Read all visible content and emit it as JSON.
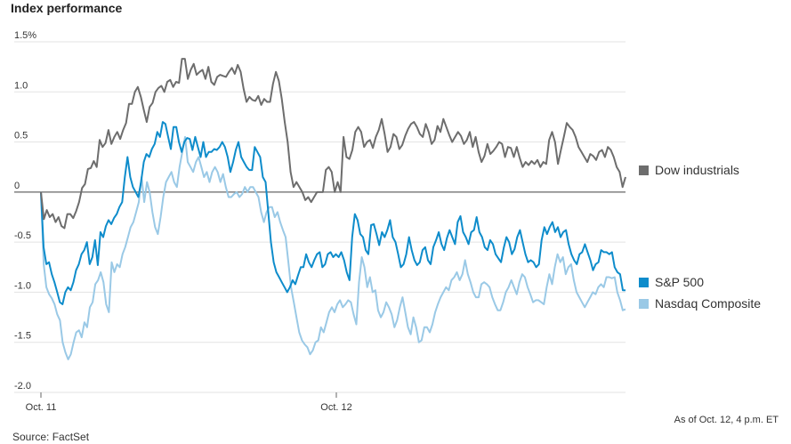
{
  "chart_data": {
    "type": "line",
    "title": "Index performance",
    "source": "Source: FactSet",
    "note": "As of Oct. 12, 4 p.m. ET",
    "x_ticks": [
      "Oct. 11",
      "Oct. 12"
    ],
    "ylim": [
      -2.0,
      1.5
    ],
    "y_ticks": [
      {
        "value": 1.5,
        "label": "1.5%"
      },
      {
        "value": 1.0,
        "label": "1.0"
      },
      {
        "value": 0.5,
        "label": "0.5"
      },
      {
        "value": 0,
        "label": "0"
      },
      {
        "value": -0.5,
        "label": "-0.5"
      },
      {
        "value": -1.0,
        "label": "-1.0"
      },
      {
        "value": -1.5,
        "label": "-1.5"
      },
      {
        "value": -2.0,
        "label": "-2.0"
      }
    ],
    "grid": true,
    "legend": "right",
    "sessions": [
      {
        "label": "Oct. 11",
        "start": 0,
        "end": 100
      },
      {
        "label": "Oct. 12",
        "start": 100,
        "end": 200
      }
    ],
    "series": [
      {
        "name": "Dow industrials",
        "color": "#6d6d6d",
        "values": [
          0.0,
          -0.27,
          -0.18,
          -0.25,
          -0.22,
          -0.3,
          -0.25,
          -0.34,
          -0.36,
          -0.22,
          -0.22,
          -0.26,
          -0.19,
          -0.1,
          0.04,
          0.08,
          0.23,
          0.24,
          0.31,
          0.25,
          0.52,
          0.45,
          0.49,
          0.62,
          0.48,
          0.55,
          0.6,
          0.53,
          0.62,
          0.69,
          0.88,
          0.88,
          1.0,
          1.05,
          0.95,
          0.82,
          0.7,
          0.85,
          0.89,
          1.0,
          1.04,
          1.06,
          1.0,
          1.1,
          1.12,
          1.05,
          1.1,
          1.09,
          1.33,
          1.33,
          1.13,
          1.22,
          1.28,
          1.17,
          1.2,
          1.22,
          1.13,
          1.25,
          1.1,
          1.07,
          1.15,
          1.17,
          1.16,
          1.15,
          1.2,
          1.24,
          1.18,
          1.27,
          1.2,
          1.03,
          0.9,
          0.95,
          0.92,
          0.91,
          0.96,
          0.87,
          0.93,
          0.9,
          0.9,
          1.08,
          1.2,
          1.11,
          0.93,
          0.7,
          0.5,
          0.2,
          0.05,
          0.1,
          0.05,
          0.0,
          -0.08,
          -0.05,
          -0.1,
          -0.05,
          0.0,
          0.0,
          0.0,
          0.22,
          0.25,
          0.2,
          0.0,
          0.1,
          0.0,
          0.55,
          0.35,
          0.33,
          0.42,
          0.6,
          0.65,
          0.6,
          0.45,
          0.5,
          0.52,
          0.44,
          0.55,
          0.62,
          0.73,
          0.58,
          0.4,
          0.45,
          0.58,
          0.55,
          0.43,
          0.47,
          0.56,
          0.63,
          0.68,
          0.7,
          0.65,
          0.58,
          0.55,
          0.68,
          0.6,
          0.48,
          0.52,
          0.66,
          0.6,
          0.73,
          0.65,
          0.57,
          0.5,
          0.55,
          0.6,
          0.56,
          0.48,
          0.52,
          0.6,
          0.45,
          0.55,
          0.4,
          0.3,
          0.36,
          0.48,
          0.38,
          0.41,
          0.45,
          0.5,
          0.48,
          0.35,
          0.45,
          0.44,
          0.35,
          0.45,
          0.34,
          0.25,
          0.3,
          0.27,
          0.31,
          0.28,
          0.32,
          0.25,
          0.3,
          0.28,
          0.52,
          0.6,
          0.5,
          0.28,
          0.42,
          0.55,
          0.69,
          0.65,
          0.62,
          0.55,
          0.45,
          0.4,
          0.35,
          0.3,
          0.38,
          0.36,
          0.32,
          0.4,
          0.42,
          0.35,
          0.45,
          0.42,
          0.35,
          0.25,
          0.2,
          0.05,
          0.15
        ]
      },
      {
        "name": "S&P 500",
        "color": "#0e8ccb",
        "values": [
          0.0,
          -0.55,
          -0.72,
          -0.7,
          -0.82,
          -0.9,
          -1.0,
          -1.1,
          -1.12,
          -1.0,
          -0.95,
          -0.98,
          -0.9,
          -0.78,
          -0.72,
          -0.62,
          -0.58,
          -0.5,
          -0.72,
          -0.65,
          -0.48,
          -0.73,
          -0.4,
          -0.45,
          -0.34,
          -0.28,
          -0.32,
          -0.26,
          -0.22,
          -0.15,
          -0.1,
          0.15,
          0.35,
          0.15,
          0.05,
          0.0,
          -0.05,
          0.1,
          0.3,
          0.38,
          0.35,
          0.43,
          0.48,
          0.6,
          0.55,
          0.7,
          0.68,
          0.55,
          0.43,
          0.65,
          0.65,
          0.5,
          0.4,
          0.5,
          0.54,
          0.53,
          0.42,
          0.55,
          0.45,
          0.35,
          0.5,
          0.35,
          0.4,
          0.4,
          0.43,
          0.42,
          0.45,
          0.5,
          0.45,
          0.35,
          0.2,
          0.3,
          0.42,
          0.5,
          0.35,
          0.3,
          0.25,
          0.22,
          0.22,
          0.45,
          0.4,
          0.35,
          0.15,
          0.1,
          -0.2,
          -0.5,
          -0.7,
          -0.8,
          -0.85,
          -0.9,
          -0.95,
          -1.0,
          -0.95,
          -0.88,
          -0.92,
          -0.83,
          -0.75,
          -0.75,
          -0.62,
          -0.7,
          -0.75,
          -0.68,
          -0.62,
          -0.6,
          -0.75,
          -0.72,
          -0.62,
          -0.6,
          -0.65,
          -0.62,
          -0.65,
          -0.6,
          -0.68,
          -0.8,
          -0.88,
          -0.45,
          -0.22,
          -0.28,
          -0.42,
          -0.45,
          -0.58,
          -0.62,
          -0.33,
          -0.32,
          -0.42,
          -0.53,
          -0.4,
          -0.45,
          -0.38,
          -0.28,
          -0.45,
          -0.5,
          -0.62,
          -0.75,
          -0.72,
          -0.62,
          -0.45,
          -0.58,
          -0.68,
          -0.73,
          -0.7,
          -0.58,
          -0.55,
          -0.68,
          -0.72,
          -0.55,
          -0.48,
          -0.4,
          -0.52,
          -0.58,
          -0.46,
          -0.38,
          -0.45,
          -0.52,
          -0.3,
          -0.24,
          -0.4,
          -0.45,
          -0.52,
          -0.4,
          -0.38,
          -0.25,
          -0.4,
          -0.45,
          -0.55,
          -0.58,
          -0.48,
          -0.52,
          -0.62,
          -0.66,
          -0.7,
          -0.56,
          -0.45,
          -0.5,
          -0.62,
          -0.57,
          -0.45,
          -0.38,
          -0.5,
          -0.62,
          -0.7,
          -0.68,
          -0.7,
          -0.75,
          -0.72,
          -0.48,
          -0.35,
          -0.42,
          -0.35,
          -0.3,
          -0.4,
          -0.35,
          -0.45,
          -0.4,
          -0.38,
          -0.52,
          -0.62,
          -0.68,
          -0.72,
          -0.62,
          -0.6,
          -0.52,
          -0.6,
          -0.68,
          -0.78,
          -0.72,
          -0.7,
          -0.58,
          -0.6,
          -0.6,
          -0.62,
          -0.6,
          -0.75,
          -0.8,
          -0.82,
          -0.98,
          -0.98
        ]
      },
      {
        "name": "Nasdaq Composite",
        "color": "#9ac9e6",
        "values": [
          0.0,
          -0.72,
          -0.95,
          -1.02,
          -1.06,
          -1.12,
          -1.22,
          -1.28,
          -1.5,
          -1.6,
          -1.67,
          -1.62,
          -1.5,
          -1.4,
          -1.38,
          -1.45,
          -1.3,
          -1.35,
          -1.15,
          -1.1,
          -0.92,
          -0.88,
          -0.8,
          -0.9,
          -1.12,
          -1.2,
          -0.7,
          -0.8,
          -0.72,
          -0.75,
          -0.62,
          -0.55,
          -0.45,
          -0.35,
          -0.3,
          -0.2,
          -0.1,
          0.15,
          -0.1,
          0.1,
          0.0,
          -0.2,
          -0.35,
          -0.42,
          -0.25,
          -0.05,
          0.1,
          0.15,
          0.2,
          0.1,
          0.05,
          0.25,
          0.4,
          0.55,
          0.3,
          0.25,
          0.2,
          0.3,
          0.35,
          0.25,
          0.15,
          0.2,
          0.1,
          0.2,
          0.25,
          0.2,
          0.1,
          0.18,
          0.05,
          -0.05,
          -0.05,
          -0.02,
          0.0,
          -0.05,
          -0.02,
          0.05,
          0.0,
          0.05,
          0.05,
          0.0,
          -0.05,
          -0.2,
          -0.3,
          -0.2,
          -0.15,
          -0.15,
          -0.25,
          -0.2,
          -0.3,
          -0.38,
          -0.45,
          -0.7,
          -0.95,
          -1.1,
          -1.25,
          -1.4,
          -1.48,
          -1.52,
          -1.55,
          -1.62,
          -1.58,
          -1.5,
          -1.48,
          -1.35,
          -1.4,
          -1.3,
          -1.2,
          -1.15,
          -1.2,
          -1.12,
          -1.08,
          -1.15,
          -1.12,
          -1.08,
          -1.1,
          -1.22,
          -1.32,
          -0.9,
          -0.65,
          -0.75,
          -0.95,
          -0.85,
          -1.0,
          -0.98,
          -1.18,
          -1.25,
          -1.2,
          -1.1,
          -1.15,
          -1.22,
          -1.35,
          -1.28,
          -1.15,
          -1.05,
          -1.2,
          -1.35,
          -1.42,
          -1.25,
          -1.35,
          -1.5,
          -1.48,
          -1.35,
          -1.35,
          -1.4,
          -1.32,
          -1.2,
          -1.12,
          -1.05,
          -1.0,
          -0.95,
          -0.98,
          -0.88,
          -0.85,
          -0.8,
          -0.88,
          -0.82,
          -0.68,
          -0.82,
          -0.9,
          -1.0,
          -1.05,
          -1.05,
          -0.92,
          -0.9,
          -0.92,
          -0.95,
          -1.05,
          -1.12,
          -1.18,
          -1.18,
          -1.1,
          -1.0,
          -0.95,
          -0.88,
          -0.95,
          -1.02,
          -0.9,
          -0.82,
          -0.85,
          -0.95,
          -1.02,
          -1.1,
          -1.08,
          -1.08,
          -1.1,
          -1.12,
          -0.95,
          -0.82,
          -0.92,
          -0.75,
          -0.62,
          -0.7,
          -0.65,
          -0.82,
          -0.75,
          -0.72,
          -0.88,
          -1.0,
          -1.05,
          -1.1,
          -1.15,
          -1.1,
          -1.05,
          -1.0,
          -1.02,
          -0.95,
          -0.92,
          -0.95,
          -0.85,
          -0.85,
          -0.86,
          -0.85,
          -1.0,
          -1.08,
          -1.18,
          -1.17
        ]
      }
    ]
  }
}
